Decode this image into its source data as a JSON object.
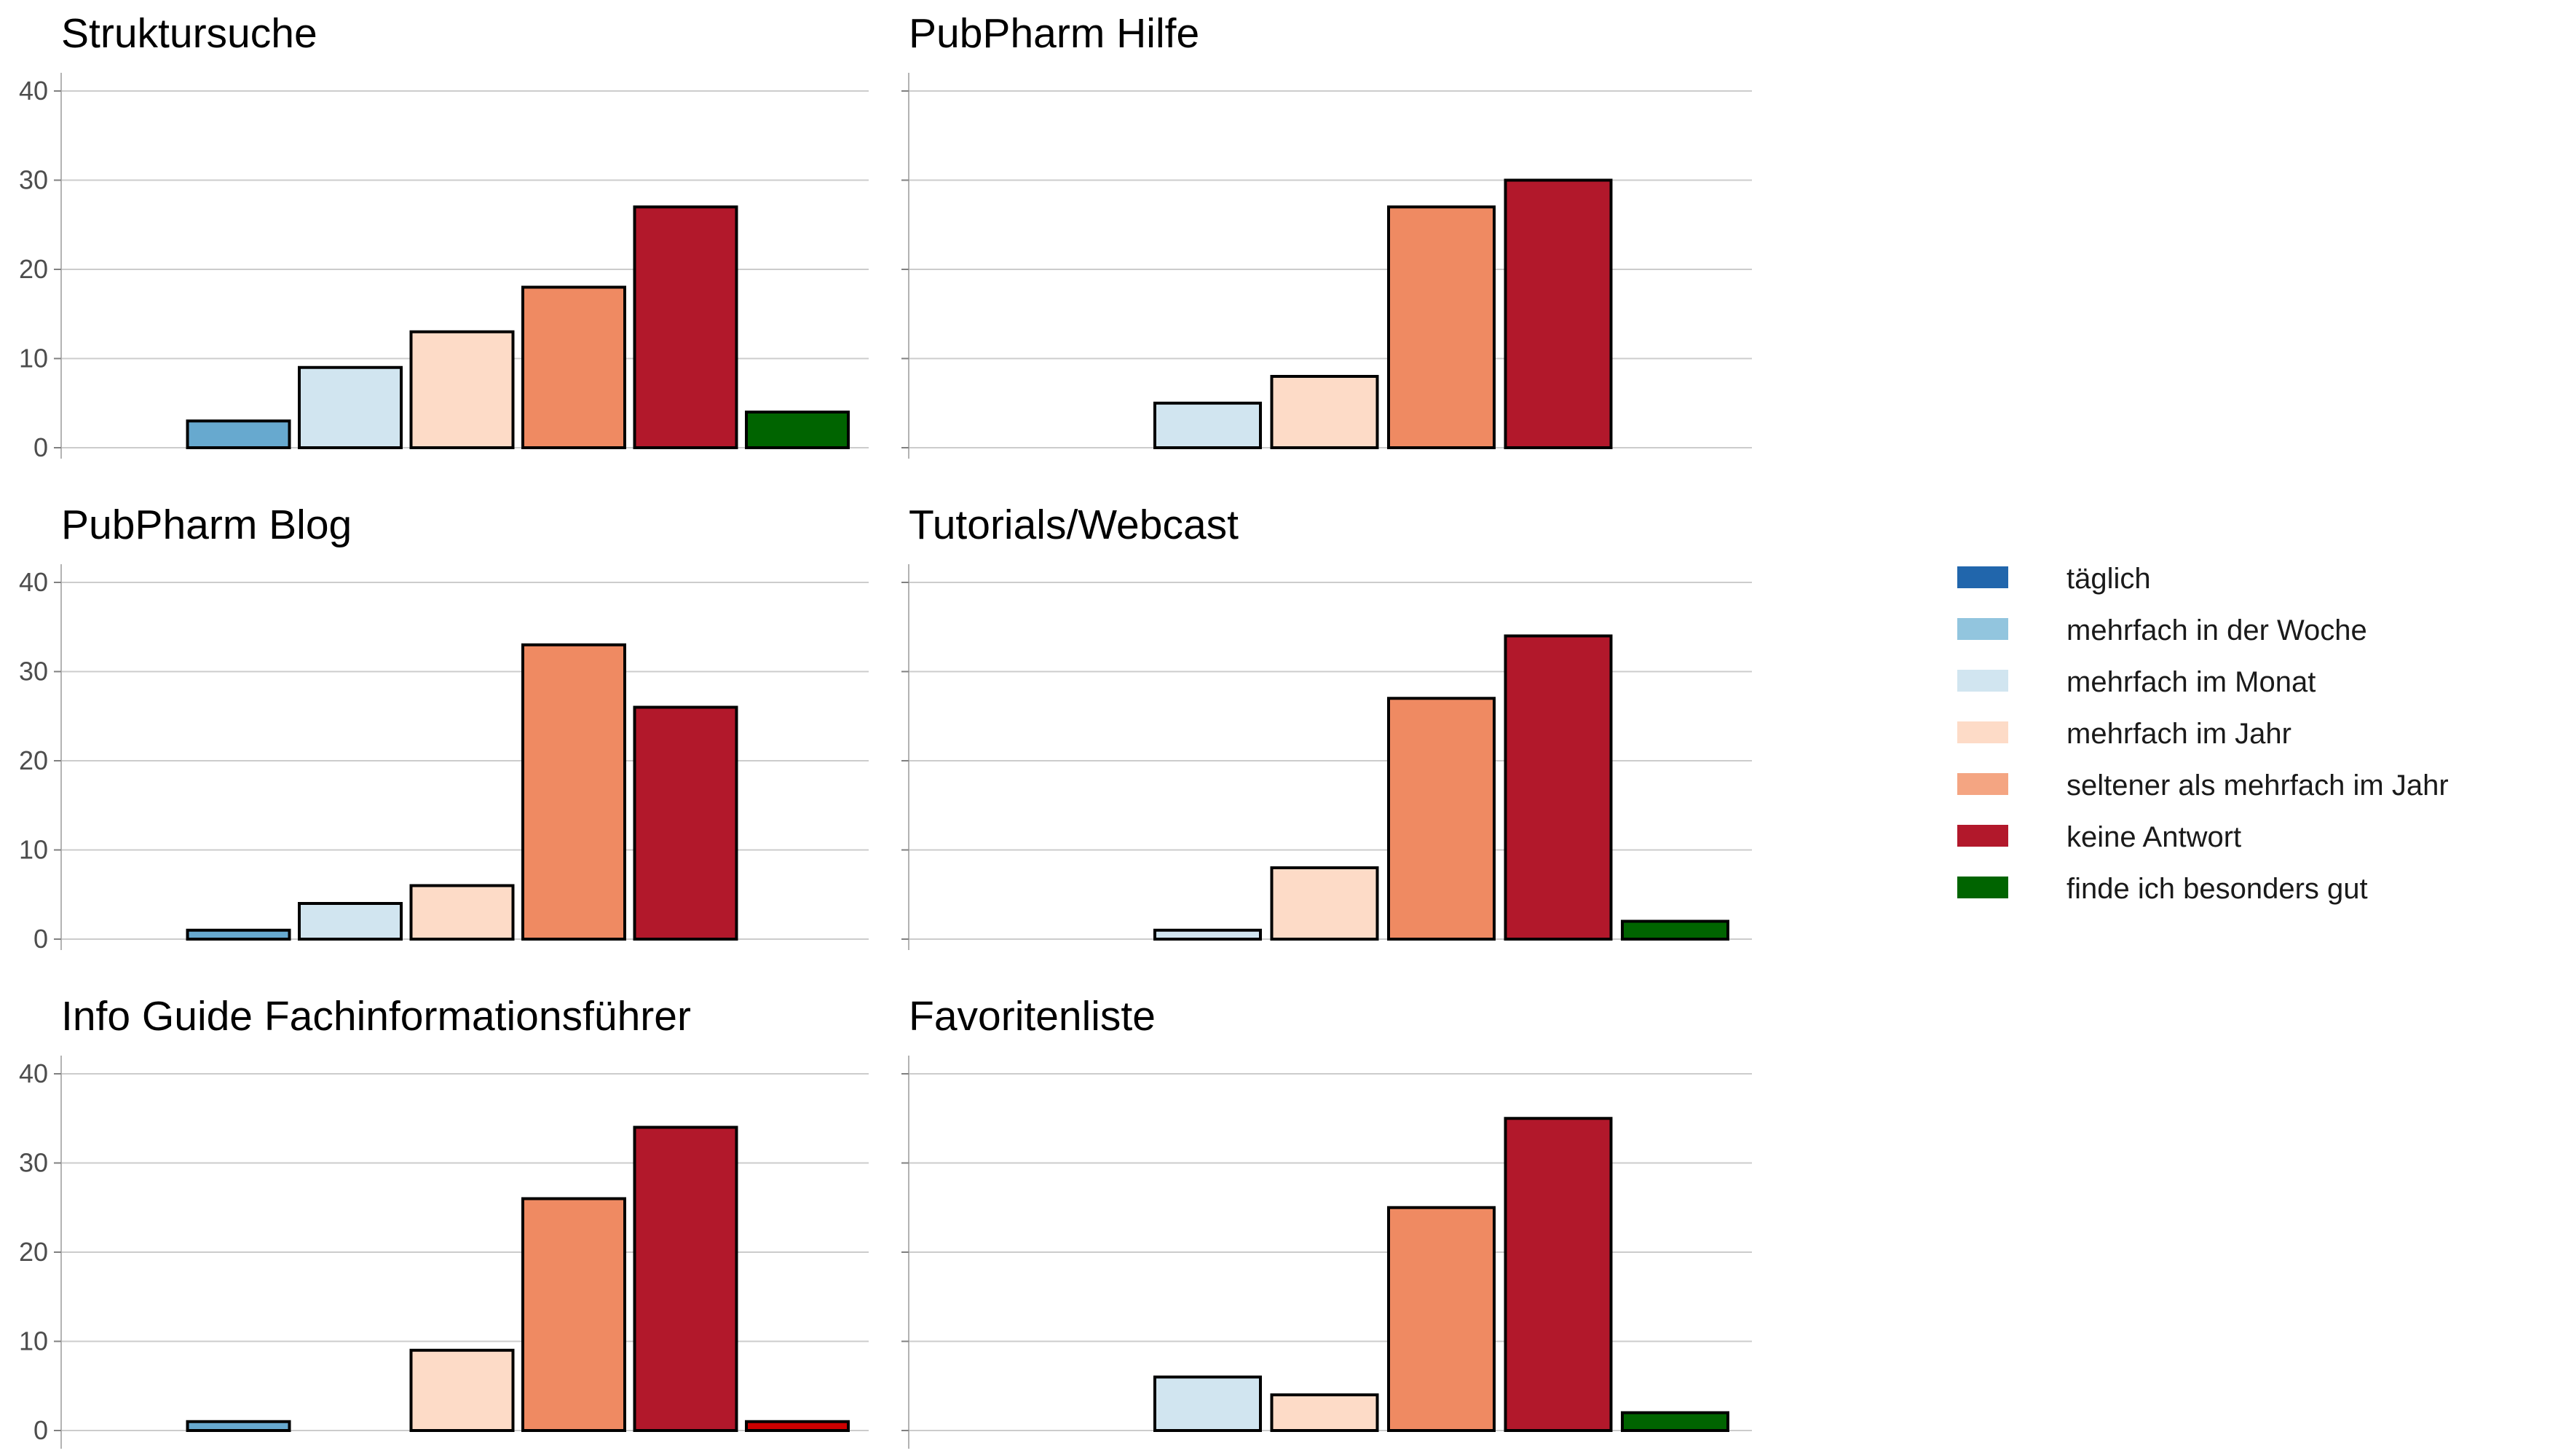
{
  "chart_data": {
    "type": "bar",
    "ylim": [
      0,
      40
    ],
    "yticks": [
      0,
      10,
      20,
      30,
      40
    ],
    "grid": true,
    "legend_position": "right",
    "categories": [
      "täglich",
      "mehrfach in der Woche",
      "mehrfach im Monat",
      "mehrfach im Jahr",
      "seltener als mehrfach im Jahr",
      "keine Antwort",
      "finde ich besonders gut"
    ],
    "colors": [
      "#2166ac",
      "#67a9cf",
      "#d1e5f0",
      "#fddbc7",
      "#ef8a62",
      "#b2182b",
      "#006400"
    ],
    "legend": {
      "items": [
        {
          "label": "täglich",
          "color": "#2166ac"
        },
        {
          "label": "mehrfach in der Woche",
          "color": "#92c5de"
        },
        {
          "label": "mehrfach im Monat",
          "color": "#d1e5f0"
        },
        {
          "label": "mehrfach im Jahr",
          "color": "#fddbc7"
        },
        {
          "label": "seltener als mehrfach im Jahr",
          "color": "#f4a582"
        },
        {
          "label": "keine Antwort",
          "color": "#b2182b"
        },
        {
          "label": "finde ich besonders gut",
          "color": "#006400"
        }
      ]
    },
    "panels": [
      {
        "title": "Struktursuche",
        "values": [
          0,
          3,
          9,
          13,
          18,
          27,
          4
        ]
      },
      {
        "title": "PubPharm Hilfe",
        "values": [
          0,
          0,
          5,
          8,
          27,
          30,
          0
        ]
      },
      {
        "title": "PubPharm Blog",
        "values": [
          0,
          1,
          4,
          6,
          33,
          26,
          0
        ]
      },
      {
        "title": "Tutorials/Webcast",
        "values": [
          0,
          0,
          1,
          8,
          27,
          34,
          2
        ]
      },
      {
        "title": "Info Guide Fachinformationsführer",
        "values": [
          0,
          1,
          0,
          9,
          26,
          34,
          1
        ],
        "colors_override": {
          "6": "#cc0000"
        }
      },
      {
        "title": "Favoritenliste",
        "values": [
          0,
          0,
          6,
          4,
          25,
          35,
          2
        ]
      }
    ]
  }
}
